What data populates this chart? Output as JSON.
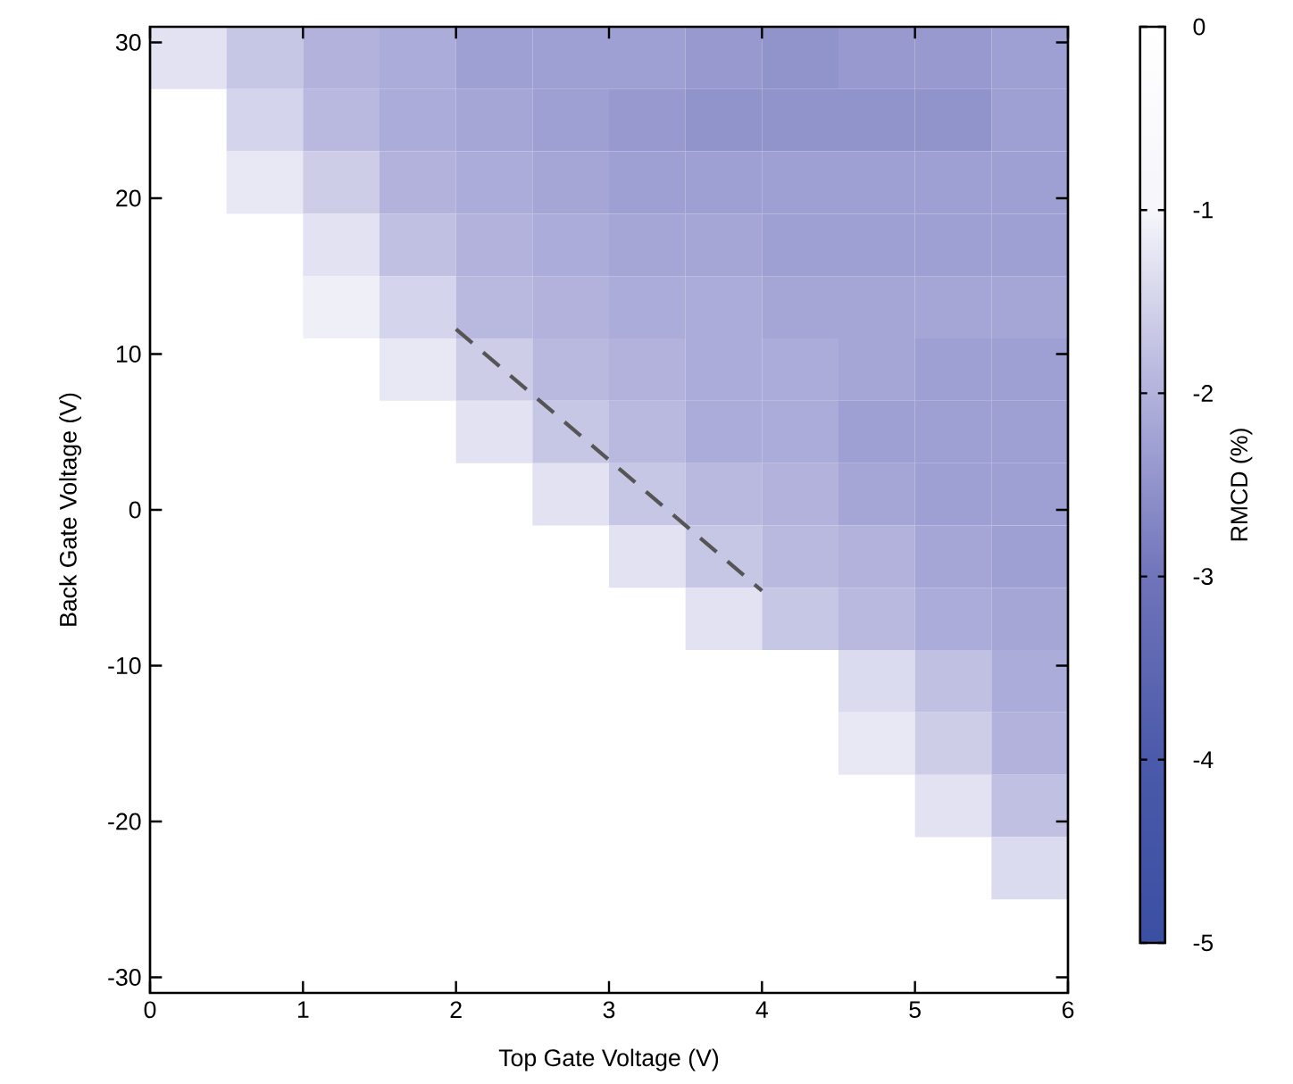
{
  "chart_data": {
    "type": "heatmap",
    "xlabel": "Top Gate Voltage (V)",
    "ylabel": "Back Gate Voltage (V)",
    "clabel": "RMCD (%)",
    "xlim": [
      0,
      6
    ],
    "ylim": [
      -31,
      31
    ],
    "xticks": [
      0,
      1,
      2,
      3,
      4,
      5,
      6
    ],
    "yticks": [
      -30,
      -20,
      -10,
      0,
      10,
      20,
      30
    ],
    "clim": [
      -5,
      0
    ],
    "cticks": [
      0,
      -1,
      -2,
      -3,
      -4,
      -5
    ],
    "x": [
      0.25,
      0.75,
      1.25,
      1.75,
      2.25,
      2.75,
      3.25,
      3.75,
      4.25,
      4.75,
      5.25,
      5.75
    ],
    "y": [
      29,
      25,
      21,
      17,
      13,
      9,
      5,
      1,
      -3,
      -7,
      -11,
      -15,
      -19,
      -23
    ],
    "cells": [
      [
        -1.3,
        -1.7,
        -2.0,
        -2.1,
        -2.3,
        -2.3,
        -2.3,
        -2.4,
        -2.5,
        -2.4,
        -2.4,
        -2.3
      ],
      [
        null,
        -1.5,
        -1.9,
        -2.1,
        -2.2,
        -2.3,
        -2.4,
        -2.5,
        -2.5,
        -2.5,
        -2.5,
        -2.3
      ],
      [
        null,
        -1.2,
        -1.6,
        -2.0,
        -2.1,
        -2.2,
        -2.3,
        -2.3,
        -2.3,
        -2.3,
        -2.3,
        -2.3
      ],
      [
        null,
        null,
        -1.3,
        -1.8,
        -2.0,
        -2.1,
        -2.2,
        -2.2,
        -2.3,
        -2.3,
        -2.3,
        -2.3
      ],
      [
        null,
        null,
        -1.1,
        -1.5,
        -1.9,
        -2.0,
        -2.1,
        -2.1,
        -2.2,
        -2.2,
        -2.2,
        -2.2
      ],
      [
        null,
        null,
        null,
        -1.2,
        -1.6,
        -1.9,
        -2.0,
        -2.1,
        -2.1,
        -2.2,
        -2.3,
        -2.3
      ],
      [
        null,
        null,
        null,
        null,
        -1.3,
        -1.7,
        -1.9,
        -2.1,
        -2.1,
        -2.3,
        -2.3,
        -2.3
      ],
      [
        null,
        null,
        null,
        null,
        null,
        -1.3,
        -1.7,
        -1.9,
        -2.0,
        -2.2,
        -2.3,
        -2.3
      ],
      [
        null,
        null,
        null,
        null,
        null,
        null,
        -1.3,
        -1.7,
        -1.9,
        -2.0,
        -2.2,
        -2.3
      ],
      [
        null,
        null,
        null,
        null,
        null,
        null,
        null,
        -1.3,
        -1.7,
        -1.9,
        -2.1,
        -2.2
      ],
      [
        null,
        null,
        null,
        null,
        null,
        null,
        null,
        null,
        null,
        -1.4,
        -1.8,
        -2.1
      ],
      [
        null,
        null,
        null,
        null,
        null,
        null,
        null,
        null,
        null,
        -1.2,
        -1.6,
        -2.0
      ],
      [
        null,
        null,
        null,
        null,
        null,
        null,
        null,
        null,
        null,
        null,
        -1.3,
        -1.8
      ],
      [
        null,
        null,
        null,
        null,
        null,
        null,
        null,
        null,
        null,
        null,
        null,
        -1.4
      ]
    ],
    "series": [
      {
        "type": "line",
        "x": [
          2,
          4
        ],
        "values": [
          11.6,
          -5.2
        ],
        "color": "#555555",
        "line_style": "dashed"
      }
    ]
  }
}
